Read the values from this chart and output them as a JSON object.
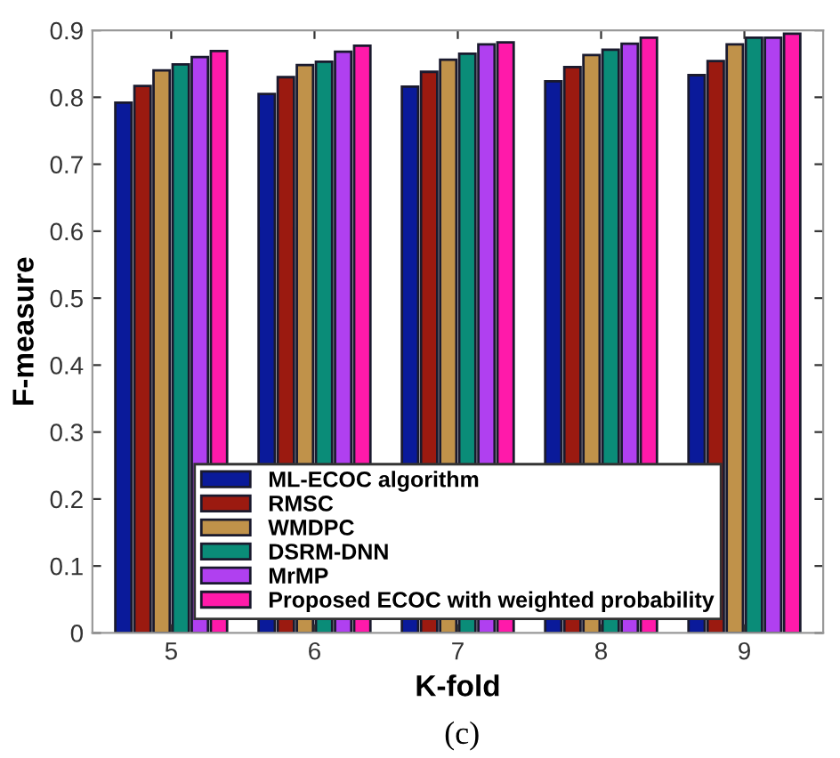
{
  "chart_data": {
    "type": "bar",
    "xlabel": "K-fold",
    "ylabel": "F-measure",
    "annotations": [
      "(c)"
    ],
    "x": [
      5,
      6,
      7,
      8,
      9
    ],
    "xlim": [
      4.45,
      9.55
    ],
    "xticks": [
      5,
      6,
      7,
      8,
      9
    ],
    "series": [
      {
        "name": "ML-ECOC algorithm",
        "color": "#0a1a9a",
        "values": [
          0.792,
          0.805,
          0.816,
          0.824,
          0.833
        ]
      },
      {
        "name": "RMSC",
        "color": "#9b1a10",
        "values": [
          0.817,
          0.83,
          0.838,
          0.845,
          0.854
        ]
      },
      {
        "name": "WMDPC",
        "color": "#c0924a",
        "values": [
          0.84,
          0.848,
          0.856,
          0.863,
          0.879
        ]
      },
      {
        "name": "DSRM-DNN",
        "color": "#0a8c78",
        "values": [
          0.849,
          0.853,
          0.865,
          0.871,
          0.889
        ]
      },
      {
        "name": "MrMP",
        "color": "#b040f0",
        "values": [
          0.86,
          0.868,
          0.879,
          0.88,
          0.889
        ]
      },
      {
        "name": "Proposed ECOC with weighted probability",
        "color": "#ff1aaa",
        "values": [
          0.869,
          0.877,
          0.882,
          0.889,
          0.895
        ]
      }
    ],
    "ylim": [
      0,
      0.9
    ],
    "yticks": [
      0,
      0.1,
      0.2,
      0.3,
      0.4,
      0.5,
      0.6,
      0.7,
      0.8,
      0.9
    ],
    "grid": false,
    "legend": "bottom"
  }
}
